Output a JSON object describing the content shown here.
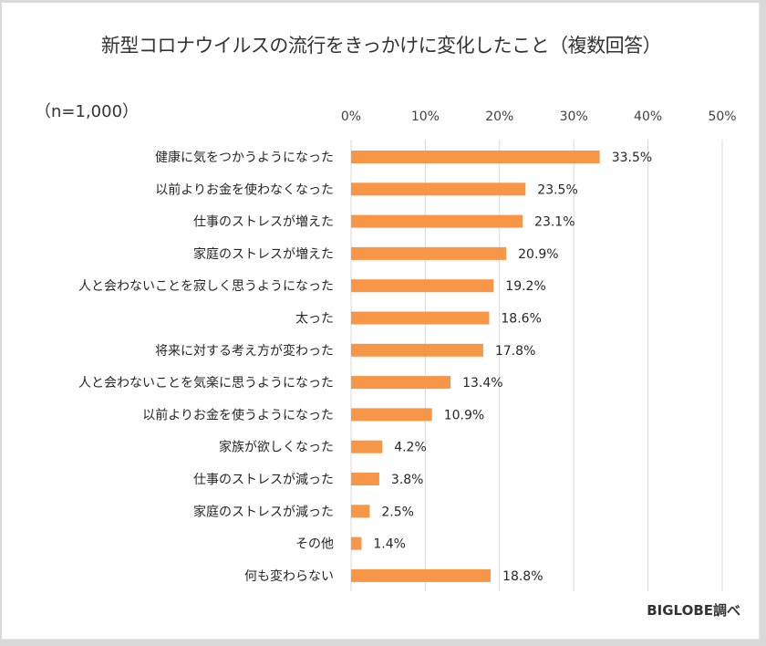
{
  "chart_data": {
    "type": "bar",
    "orientation": "horizontal",
    "title": "新型コロナウイルスの流行をきっかけに変化したこと（複数回答）",
    "sample_size_label": "（n=1,000）",
    "source_label": "BIGLOBE調べ",
    "xlabel": "",
    "ylabel": "",
    "xlim": [
      0,
      50
    ],
    "ticks": [
      0,
      10,
      20,
      30,
      40,
      50
    ],
    "tick_labels": [
      "0%",
      "10%",
      "20%",
      "30%",
      "40%",
      "50%"
    ],
    "axis_position": "top",
    "grid": true,
    "bar_color": "#F79646",
    "grid_color": "#D9D9D9",
    "categories": [
      "健康に気をつかうようになった",
      "以前よりお金を使わなくなった",
      "仕事のストレスが増えた",
      "家庭のストレスが増えた",
      "人と会わないことを寂しく思うようになった",
      "太った",
      "将来に対する考え方が変わった",
      "人と会わないことを気楽に思うようになった",
      "以前よりお金を使うようになった",
      "家族が欲しくなった",
      "仕事のストレスが減った",
      "家庭のストレスが減った",
      "その他",
      "何も変わらない"
    ],
    "values": [
      33.5,
      23.5,
      23.1,
      20.9,
      19.2,
      18.6,
      17.8,
      13.4,
      10.9,
      4.2,
      3.8,
      2.5,
      1.4,
      18.8
    ],
    "value_labels": [
      "33.5%",
      "23.5%",
      "23.1%",
      "20.9%",
      "19.2%",
      "18.6%",
      "17.8%",
      "13.4%",
      "10.9%",
      "4.2%",
      "3.8%",
      "2.5%",
      "1.4%",
      "18.8%"
    ]
  }
}
